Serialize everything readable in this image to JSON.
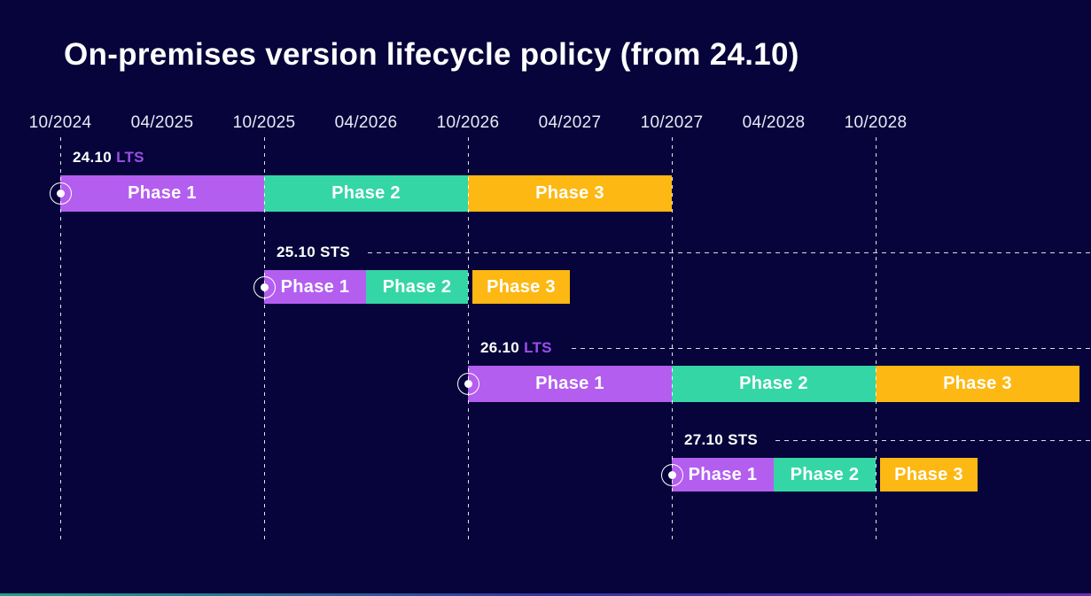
{
  "title": "On-premises version lifecycle policy (from 24.10)",
  "colors": {
    "background": "#06043a",
    "phase1_purple": "#b45ef0",
    "phase2_teal": "#35d6a5",
    "phase3_yellow": "#fdb813",
    "lts_text_purple": "#9c4fe6",
    "sts_text_white": "#ffffff",
    "axis_text": "#e9e8f4",
    "dashed_line": "#ffffff",
    "bottom_gradient": [
      "#2bd4a4",
      "#4644c0",
      "#8a40d8"
    ]
  },
  "chart_data": {
    "type": "gantt",
    "title": "On-premises version lifecycle policy (from 24.10)",
    "x_axis": {
      "tick_labels": [
        "10/2024",
        "04/2025",
        "10/2025",
        "04/2026",
        "10/2026",
        "04/2027",
        "10/2027",
        "04/2028",
        "10/2028"
      ],
      "gridline_ticks": [
        "10/2024",
        "10/2025",
        "10/2026",
        "10/2027",
        "10/2028"
      ],
      "start_month": "10/2024",
      "tick_interval_months": 6,
      "grid": "vertical-dashed-at-october-ticks"
    },
    "channel_colors": {
      "LTS": "#9c4fe6",
      "STS": "#ffffff"
    },
    "rows": [
      {
        "version": "24.10",
        "channel": "LTS",
        "leader_line": false,
        "phases": [
          {
            "label": "Phase 1",
            "start": "10/2024",
            "end": "10/2025",
            "color": "#b45ef0",
            "detached": false
          },
          {
            "label": "Phase 2",
            "start": "10/2025",
            "end": "10/2026",
            "color": "#35d6a5",
            "detached": false
          },
          {
            "label": "Phase 3",
            "start": "10/2026",
            "end": "10/2027",
            "color": "#fdb813",
            "detached": false
          }
        ]
      },
      {
        "version": "25.10",
        "channel": "STS",
        "leader_line": true,
        "phases": [
          {
            "label": "Phase 1",
            "start": "10/2025",
            "end": "04/2026",
            "color": "#b45ef0",
            "detached": false
          },
          {
            "label": "Phase 2",
            "start": "04/2026",
            "end": "10/2026",
            "color": "#35d6a5",
            "detached": false
          },
          {
            "label": "Phase 3",
            "start": "10/2026",
            "end": "04/2027",
            "color": "#fdb813",
            "detached": true
          }
        ]
      },
      {
        "version": "26.10",
        "channel": "LTS",
        "leader_line": true,
        "phases": [
          {
            "label": "Phase 1",
            "start": "10/2026",
            "end": "10/2027",
            "color": "#b45ef0",
            "detached": false
          },
          {
            "label": "Phase 2",
            "start": "10/2027",
            "end": "10/2028",
            "color": "#35d6a5",
            "detached": false
          },
          {
            "label": "Phase 3",
            "start": "10/2028",
            "end": "10/2029",
            "color": "#fdb813",
            "detached": false
          }
        ]
      },
      {
        "version": "27.10",
        "channel": "STS",
        "leader_line": true,
        "phases": [
          {
            "label": "Phase 1",
            "start": "10/2027",
            "end": "04/2028",
            "color": "#b45ef0",
            "detached": false
          },
          {
            "label": "Phase 2",
            "start": "04/2028",
            "end": "10/2028",
            "color": "#35d6a5",
            "detached": false
          },
          {
            "label": "Phase 3",
            "start": "10/2028",
            "end": "04/2029",
            "color": "#fdb813",
            "detached": true
          }
        ]
      }
    ]
  }
}
